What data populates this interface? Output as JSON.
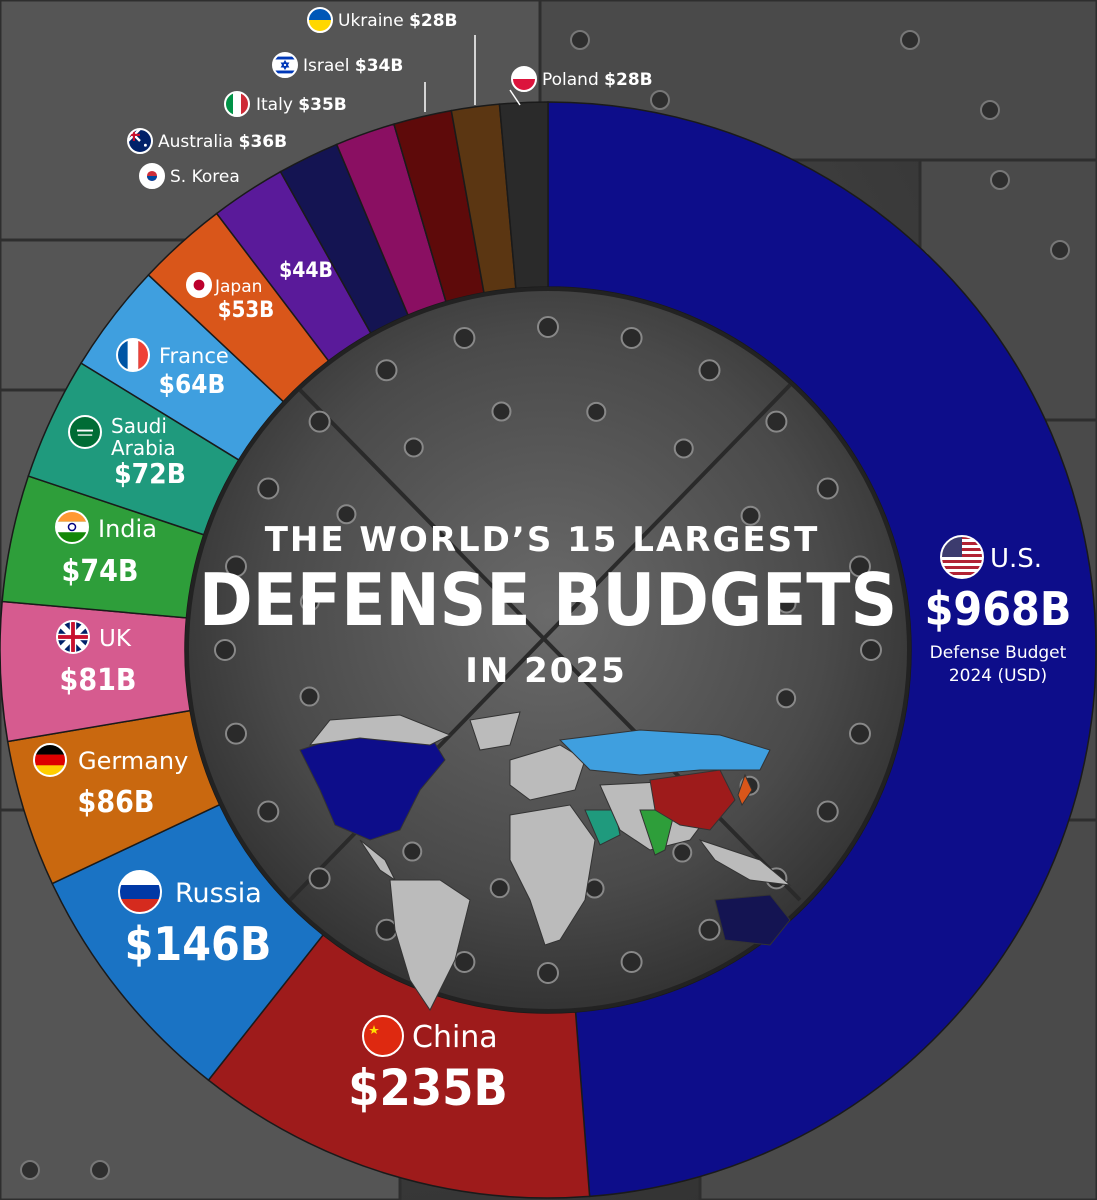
{
  "title": {
    "line1": "THE WORLD’S 15 LARGEST",
    "line2": "DEFENSE BUDGETS",
    "line3": "IN 2025"
  },
  "chart_data": {
    "type": "pie",
    "subtype": "donut",
    "unit": "B USD",
    "note": "Defense Budget 2024 (USD)",
    "slices": [
      {
        "name": "U.S.",
        "value": 968,
        "label": "$968B",
        "color": "#0d0d8a",
        "flag": "us-flag-icon"
      },
      {
        "name": "China",
        "value": 235,
        "label": "$235B",
        "color": "#9e1b1b",
        "flag": "china-flag-icon"
      },
      {
        "name": "Russia",
        "value": 146,
        "label": "$146B",
        "color": "#1a73c4",
        "flag": "russia-flag-icon"
      },
      {
        "name": "Germany",
        "value": 86,
        "label": "$86B",
        "color": "#c9680f",
        "flag": "germany-flag-icon"
      },
      {
        "name": "UK",
        "value": 81,
        "label": "$81B",
        "color": "#d65b8f",
        "flag": "uk-flag-icon"
      },
      {
        "name": "India",
        "value": 74,
        "label": "$74B",
        "color": "#2e9e3a",
        "flag": "india-flag-icon"
      },
      {
        "name": "Saudi Arabia",
        "value": 72,
        "label": "$72B",
        "color": "#1f9a7d",
        "flag": "saudi-flag-icon"
      },
      {
        "name": "France",
        "value": 64,
        "label": "$64B",
        "color": "#3f9fdf",
        "flag": "france-flag-icon"
      },
      {
        "name": "Japan",
        "value": 53,
        "label": "$53B",
        "color": "#d9561a",
        "flag": "japan-flag-icon"
      },
      {
        "name": "S. Korea",
        "value": 44,
        "label": "$44B",
        "color": "#5a1a9a",
        "flag": "korea-flag-icon"
      },
      {
        "name": "Australia",
        "value": 36,
        "label": "$36B",
        "color": "#141452",
        "flag": "australia-flag-icon"
      },
      {
        "name": "Italy",
        "value": 35,
        "label": "$35B",
        "color": "#8a0f62",
        "flag": "italy-flag-icon"
      },
      {
        "name": "Israel",
        "value": 34,
        "label": "$34B",
        "color": "#5e0a0a",
        "flag": "israel-flag-icon"
      },
      {
        "name": "Ukraine",
        "value": 28,
        "label": "$28B",
        "color": "#5b3612",
        "flag": "ukraine-flag-icon"
      },
      {
        "name": "Poland",
        "value": 28,
        "label": "$28B",
        "color": "#2a2a2a",
        "flag": "poland-flag-icon"
      }
    ]
  }
}
